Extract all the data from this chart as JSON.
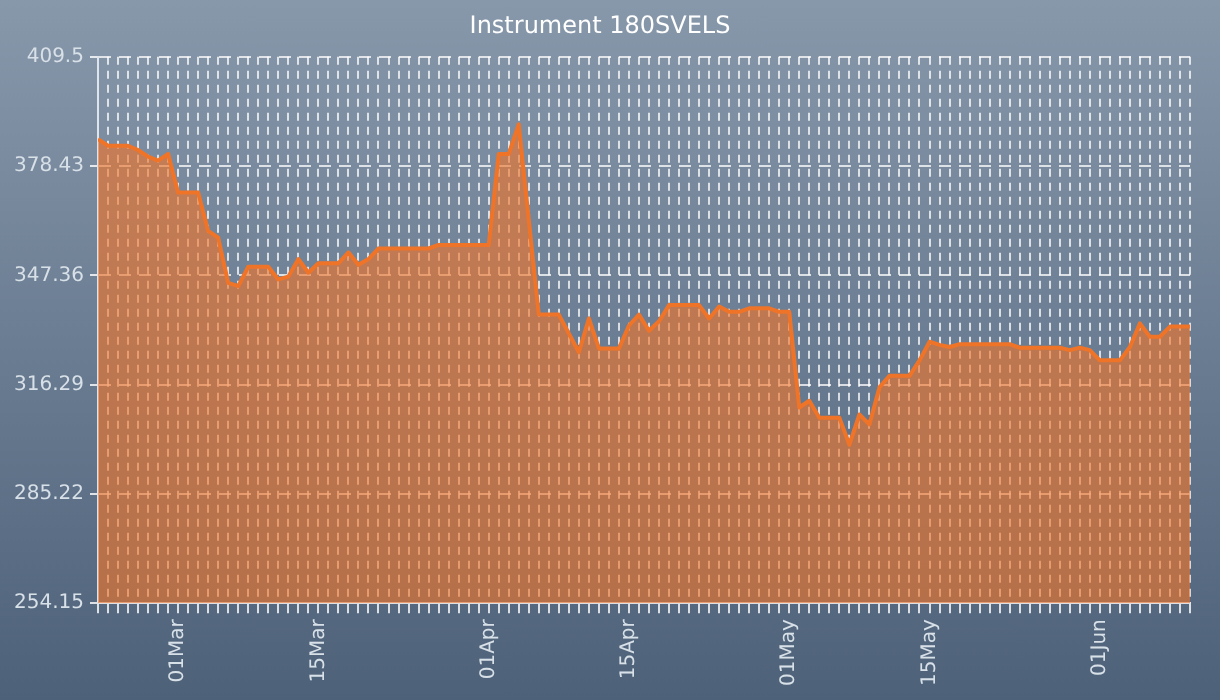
{
  "chart_data": {
    "type": "area",
    "title": "Instrument 180SVELS",
    "x": [
      "--02-21",
      "--02-22",
      "--02-24",
      "--02-25",
      "--02-26",
      "--02-27",
      "--02-28",
      "--03-01",
      "--03-03",
      "--03-04",
      "--03-05",
      "--03-06",
      "--03-07",
      "--03-08",
      "--03-10",
      "--03-11",
      "--03-12",
      "--03-13",
      "--03-14",
      "--03-15",
      "--03-17",
      "--03-18",
      "--03-19",
      "--03-20",
      "--03-21",
      "--03-26",
      "--03-27",
      "--04-01",
      "--04-02",
      "--04-03",
      "--04-04",
      "--04-06",
      "--04-08",
      "--04-10",
      "--04-11",
      "--04-12",
      "--04-14",
      "--04-15",
      "--04-16",
      "--04-17",
      "--04-18",
      "--04-19",
      "--04-22",
      "--04-23",
      "--04-24",
      "--04-25",
      "--04-26",
      "--04-27",
      "--04-29",
      "--04-30",
      "--05-01",
      "--05-02",
      "--05-03",
      "--05-04",
      "--05-06",
      "--05-07",
      "--05-08",
      "--05-09",
      "--05-10",
      "--05-11",
      "--05-13",
      "--05-14",
      "--05-15",
      "--05-16",
      "--05-17",
      "--05-18",
      "--05-23",
      "--05-24",
      "--05-28",
      "--05-29",
      "--05-30",
      "--05-31",
      "--06-01",
      "--06-03",
      "--06-04",
      "--06-05",
      "--06-06",
      "--06-07",
      "--06-08",
      "--06-10"
    ],
    "series": [
      {
        "color": "#f07428",
        "values": [
          386.1,
          384.2,
          384.2,
          383.0,
          381.1,
          380.0,
          381.9,
          370.9,
          370.9,
          360.0,
          358.1,
          345.2,
          344.3,
          349.8,
          349.8,
          346.2,
          347.0,
          352.0,
          348.1,
          350.8,
          350.8,
          353.9,
          350.4,
          352.0,
          355.0,
          355.0,
          356.0,
          356.0,
          381.9,
          381.9,
          390.3,
          336.2,
          336.2,
          325.5,
          335.1,
          326.6,
          326.6,
          333.1,
          336.2,
          331.6,
          334.3,
          338.9,
          338.9,
          335.1,
          338.5,
          337.0,
          337.0,
          338.0,
          338.0,
          337.0,
          337.0,
          309.8,
          311.7,
          306.9,
          306.9,
          299.2,
          307.8,
          305.0,
          315.5,
          318.8,
          318.8,
          323.2,
          328.5,
          327.6,
          327.0,
          327.8,
          327.8,
          326.8,
          326.8,
          326.1,
          326.8,
          326.1,
          323.2,
          323.2,
          327.0,
          333.7,
          329.9,
          329.9,
          332.8,
          332.8
        ]
      }
    ],
    "xlim": [
      "--02-21",
      "--06-10"
    ],
    "xticks": [
      {
        "value": "--02-21",
        "label": null
      },
      {
        "value": "--02-22",
        "label": null
      },
      {
        "value": "--02-23",
        "label": null
      },
      {
        "value": "--02-24",
        "label": null
      },
      {
        "value": "--02-25",
        "label": null
      },
      {
        "value": "--02-26",
        "label": null
      },
      {
        "value": "--02-27",
        "label": null
      },
      {
        "value": "--02-28",
        "label": null
      },
      {
        "value": "--03-01",
        "label": "01Mar"
      },
      {
        "value": "--03-02",
        "label": null
      },
      {
        "value": "--03-03",
        "label": null
      },
      {
        "value": "--03-04",
        "label": null
      },
      {
        "value": "--03-05",
        "label": null
      },
      {
        "value": "--03-06",
        "label": null
      },
      {
        "value": "--03-07",
        "label": null
      },
      {
        "value": "--03-08",
        "label": null
      },
      {
        "value": "--03-09",
        "label": null
      },
      {
        "value": "--03-10",
        "label": null
      },
      {
        "value": "--03-11",
        "label": null
      },
      {
        "value": "--03-12",
        "label": null
      },
      {
        "value": "--03-13",
        "label": null
      },
      {
        "value": "--03-14",
        "label": null
      },
      {
        "value": "--03-15",
        "label": "15Mar"
      },
      {
        "value": "--03-16",
        "label": null
      },
      {
        "value": "--03-17",
        "label": null
      },
      {
        "value": "--03-18",
        "label": null
      },
      {
        "value": "--03-19",
        "label": null
      },
      {
        "value": "--03-20",
        "label": null
      },
      {
        "value": "--03-21",
        "label": null
      },
      {
        "value": "--03-22",
        "label": null
      },
      {
        "value": "--03-23",
        "label": null
      },
      {
        "value": "--03-24",
        "label": null
      },
      {
        "value": "--03-25",
        "label": null
      },
      {
        "value": "--03-26",
        "label": null
      },
      {
        "value": "--03-27",
        "label": null
      },
      {
        "value": "--03-28",
        "label": null
      },
      {
        "value": "--03-29",
        "label": null
      },
      {
        "value": "--03-30",
        "label": null
      },
      {
        "value": "--03-31",
        "label": null
      },
      {
        "value": "--04-01",
        "label": "01Apr"
      },
      {
        "value": "--04-02",
        "label": null
      },
      {
        "value": "--04-03",
        "label": null
      },
      {
        "value": "--04-04",
        "label": null
      },
      {
        "value": "--04-05",
        "label": null
      },
      {
        "value": "--04-06",
        "label": null
      },
      {
        "value": "--04-07",
        "label": null
      },
      {
        "value": "--04-08",
        "label": null
      },
      {
        "value": "--04-09",
        "label": null
      },
      {
        "value": "--04-10",
        "label": null
      },
      {
        "value": "--04-11",
        "label": null
      },
      {
        "value": "--04-12",
        "label": null
      },
      {
        "value": "--04-13",
        "label": null
      },
      {
        "value": "--04-14",
        "label": null
      },
      {
        "value": "--04-15",
        "label": "15Apr"
      },
      {
        "value": "--04-16",
        "label": null
      },
      {
        "value": "--04-17",
        "label": null
      },
      {
        "value": "--04-18",
        "label": null
      },
      {
        "value": "--04-19",
        "label": null
      },
      {
        "value": "--04-20",
        "label": null
      },
      {
        "value": "--04-21",
        "label": null
      },
      {
        "value": "--04-22",
        "label": null
      },
      {
        "value": "--04-23",
        "label": null
      },
      {
        "value": "--04-24",
        "label": null
      },
      {
        "value": "--04-25",
        "label": null
      },
      {
        "value": "--04-26",
        "label": null
      },
      {
        "value": "--04-27",
        "label": null
      },
      {
        "value": "--04-28",
        "label": null
      },
      {
        "value": "--04-29",
        "label": null
      },
      {
        "value": "--04-30",
        "label": null
      },
      {
        "value": "--05-01",
        "label": "01May"
      },
      {
        "value": "--05-02",
        "label": null
      },
      {
        "value": "--05-03",
        "label": null
      },
      {
        "value": "--05-04",
        "label": null
      },
      {
        "value": "--05-05",
        "label": null
      },
      {
        "value": "--05-06",
        "label": null
      },
      {
        "value": "--05-07",
        "label": null
      },
      {
        "value": "--05-08",
        "label": null
      },
      {
        "value": "--05-09",
        "label": null
      },
      {
        "value": "--05-10",
        "label": null
      },
      {
        "value": "--05-11",
        "label": null
      },
      {
        "value": "--05-12",
        "label": null
      },
      {
        "value": "--05-13",
        "label": null
      },
      {
        "value": "--05-14",
        "label": null
      },
      {
        "value": "--05-15",
        "label": "15May"
      },
      {
        "value": "--05-16",
        "label": null
      },
      {
        "value": "--05-17",
        "label": null
      },
      {
        "value": "--05-18",
        "label": null
      },
      {
        "value": "--05-19",
        "label": null
      },
      {
        "value": "--05-20",
        "label": null
      },
      {
        "value": "--05-21",
        "label": null
      },
      {
        "value": "--05-22",
        "label": null
      },
      {
        "value": "--05-23",
        "label": null
      },
      {
        "value": "--05-24",
        "label": null
      },
      {
        "value": "--05-25",
        "label": null
      },
      {
        "value": "--05-26",
        "label": null
      },
      {
        "value": "--05-27",
        "label": null
      },
      {
        "value": "--05-28",
        "label": null
      },
      {
        "value": "--05-29",
        "label": null
      },
      {
        "value": "--05-30",
        "label": null
      },
      {
        "value": "--05-31",
        "label": null
      },
      {
        "value": "--06-01",
        "label": "01Jun"
      },
      {
        "value": "--06-02",
        "label": null
      },
      {
        "value": "--06-03",
        "label": null
      },
      {
        "value": "--06-04",
        "label": null
      },
      {
        "value": "--06-05",
        "label": null
      },
      {
        "value": "--06-06",
        "label": null
      },
      {
        "value": "--06-07",
        "label": null
      },
      {
        "value": "--06-08",
        "label": null
      },
      {
        "value": "--06-09",
        "label": null
      },
      {
        "value": "--06-10",
        "label": null
      }
    ],
    "ylim": [
      254.15,
      409.5
    ],
    "yticks": [
      254.15,
      285.22,
      316.29,
      347.36,
      378.43,
      409.5
    ],
    "grid": true,
    "legend": false
  }
}
